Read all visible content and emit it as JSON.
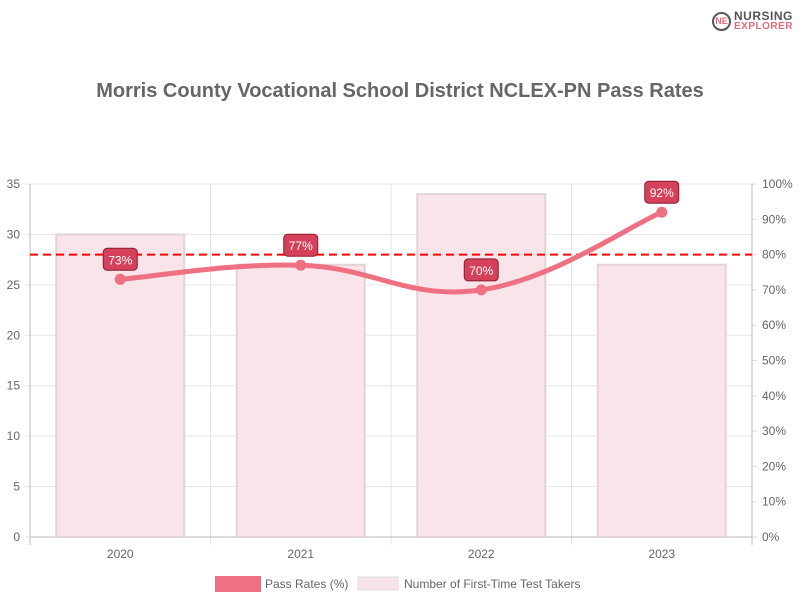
{
  "logo": {
    "line1": "NURSING",
    "line2": "EXPLORER"
  },
  "chart_data": {
    "type": "bar",
    "title": "Morris County Vocational School District NCLEX-PN Pass Rates",
    "categories": [
      "2020",
      "2021",
      "2022",
      "2023"
    ],
    "series": [
      {
        "name": "Pass Rates (%)",
        "type": "line",
        "axis": "right",
        "values": [
          73,
          77,
          70,
          92
        ],
        "labels": [
          "73%",
          "77%",
          "70%",
          "92%"
        ],
        "color": "#f07083"
      },
      {
        "name": "Number of First-Time Test Takers",
        "type": "bar",
        "axis": "left",
        "values": [
          30,
          27,
          34,
          27
        ],
        "color": "#f8e4e9"
      }
    ],
    "reference_line": {
      "value": 80,
      "axis": "right",
      "color": "#ff0000",
      "style": "dashed"
    },
    "y_left": {
      "ylim": [
        0,
        35
      ],
      "ticks": [
        "0",
        "5",
        "10",
        "15",
        "20",
        "25",
        "30",
        "35"
      ]
    },
    "y_right": {
      "ylim": [
        0,
        100
      ],
      "ticks": [
        "0%",
        "10%",
        "20%",
        "30%",
        "40%",
        "50%",
        "60%",
        "70%",
        "80%",
        "90%",
        "100%"
      ]
    },
    "grid": true,
    "legend": "bottom"
  }
}
